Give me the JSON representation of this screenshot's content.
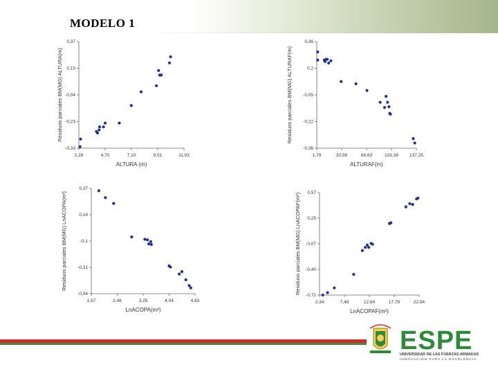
{
  "header": {
    "title": "MODELO 1"
  },
  "logo": {
    "brand": "ESPE",
    "line1": "UNIVERSIDAD DE LAS FUERZAS ARMADAS",
    "line2": "INNOVACIÓN PARA LA EXCELENCIA",
    "colors": {
      "green": "#2e8b3a",
      "dark": "#3c3c3c"
    }
  },
  "point_color": "#1f2f9a",
  "chart_data": [
    {
      "type": "scatter",
      "xlabel": "ALTURA (m)",
      "ylabel": "Residuos parciales BM(MG) ALTURA(m)",
      "xticks": [
        "2,29",
        "4,70",
        "7,10",
        "9,51",
        "11,93"
      ],
      "yticks": [
        "0,37",
        "0,15",
        "-0,04",
        "-0,23",
        "-0,33"
      ],
      "xlim": [
        2.29,
        11.93
      ],
      "ylim": [
        -0.33,
        0.37
      ],
      "points": [
        [
          2.45,
          -0.27
        ],
        [
          2.4,
          -0.32
        ],
        [
          3.9,
          -0.22
        ],
        [
          4.0,
          -0.23
        ],
        [
          4.15,
          -0.21
        ],
        [
          4.2,
          -0.19
        ],
        [
          4.55,
          -0.19
        ],
        [
          4.7,
          -0.165
        ],
        [
          6.0,
          -0.165
        ],
        [
          7.1,
          -0.05
        ],
        [
          8.0,
          0.04
        ],
        [
          9.4,
          0.08
        ],
        [
          9.6,
          0.18
        ],
        [
          9.7,
          0.15
        ],
        [
          9.85,
          0.15
        ],
        [
          10.6,
          0.23
        ],
        [
          10.7,
          0.27
        ]
      ]
    },
    {
      "type": "scatter",
      "xlabel": "ALTURAF(m)",
      "ylabel": "Residuos parciales BM(MG) ALTURAF(m)",
      "xticks": [
        "1,79",
        "33,56",
        "69,63",
        "103,39",
        "137,25"
      ],
      "yticks": [
        "0,36",
        "0,2",
        "-0,05",
        "-0,22",
        "-0,36"
      ],
      "xlim": [
        1.79,
        137.25
      ],
      "ylim": [
        -0.36,
        0.36
      ],
      "points": [
        [
          3,
          0.29
        ],
        [
          3,
          0.235
        ],
        [
          12,
          0.235
        ],
        [
          14,
          0.24
        ],
        [
          16,
          0.24
        ],
        [
          13,
          0.225
        ],
        [
          21,
          0.23
        ],
        [
          18,
          0.215
        ],
        [
          35,
          0.09
        ],
        [
          55,
          0.075
        ],
        [
          70,
          0.03
        ],
        [
          88,
          -0.05
        ],
        [
          94,
          -0.085
        ],
        [
          96,
          -0.01
        ],
        [
          98,
          -0.05
        ],
        [
          100,
          -0.08
        ],
        [
          101,
          -0.125
        ],
        [
          102,
          -0.13
        ],
        [
          133,
          -0.295
        ],
        [
          135,
          -0.325
        ]
      ]
    },
    {
      "type": "scatter",
      "xlabel": "LnACOPA(m²)",
      "ylabel": "Residuos parciales BM(MG) LnACOPA(m²)",
      "xticks": [
        "1,67",
        "2,46",
        "3,25",
        "4,04",
        "4,83"
      ],
      "yticks": [
        "0,37",
        "0,14",
        "-0,1",
        "-0,31",
        "-0,54"
      ],
      "xlim": [
        1.67,
        4.83
      ],
      "ylim": [
        -0.54,
        0.37
      ],
      "points": [
        [
          1.9,
          0.35
        ],
        [
          2.1,
          0.29
        ],
        [
          2.35,
          0.24
        ],
        [
          2.9,
          -0.05
        ],
        [
          3.3,
          -0.07
        ],
        [
          3.38,
          -0.075
        ],
        [
          3.42,
          -0.11
        ],
        [
          3.48,
          -0.09
        ],
        [
          3.5,
          -0.115
        ],
        [
          4.04,
          -0.3
        ],
        [
          4.08,
          -0.31
        ],
        [
          4.35,
          -0.37
        ],
        [
          4.43,
          -0.35
        ],
        [
          4.55,
          -0.42
        ],
        [
          4.65,
          -0.47
        ],
        [
          4.7,
          -0.49
        ]
      ]
    },
    {
      "type": "scatter",
      "xlabel": "LnACOPAF(m²)",
      "ylabel": "Residuos parciales BM(MG) LnACOPAF(m²)",
      "xticks": [
        "2,34",
        "7,49",
        "12,64",
        "17,79",
        "22,94"
      ],
      "yticks": [
        "0,57",
        "0,25",
        "-0,07",
        "-0,40",
        "-0,72"
      ],
      "xlim": [
        2.34,
        22.94
      ],
      "ylim": [
        -0.72,
        0.57
      ],
      "points": [
        [
          3.0,
          -0.72
        ],
        [
          4.0,
          -0.69
        ],
        [
          5.4,
          -0.63
        ],
        [
          9.4,
          -0.46
        ],
        [
          11.2,
          -0.16
        ],
        [
          11.8,
          -0.12
        ],
        [
          12.2,
          -0.09
        ],
        [
          12.5,
          -0.12
        ],
        [
          13.0,
          -0.07
        ],
        [
          13.3,
          -0.08
        ],
        [
          16.8,
          0.18
        ],
        [
          17.1,
          0.19
        ],
        [
          20.2,
          0.39
        ],
        [
          21.0,
          0.43
        ],
        [
          21.6,
          0.42
        ],
        [
          22.4,
          0.49
        ],
        [
          22.7,
          0.5
        ]
      ]
    }
  ]
}
